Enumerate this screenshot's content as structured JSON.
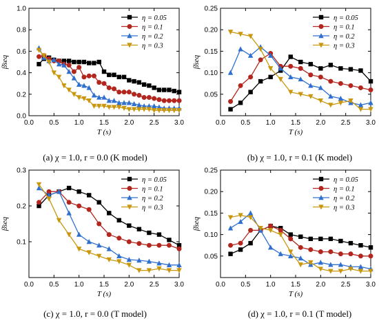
{
  "chart_data": [
    {
      "type": "line",
      "caption": "(a) χ = 1.0, r = 0.0 (K model)",
      "xlabel": "T (s)",
      "ylabel": "β̄seq",
      "xlim": [
        0,
        3.0
      ],
      "ylim": [
        0,
        1.0
      ],
      "xticks": [
        "0.0",
        "0.5",
        "1.0",
        "1.5",
        "2.0",
        "2.5",
        "3.0"
      ],
      "yticks": [
        "0.0",
        "0.2",
        "0.4",
        "0.6",
        "0.8",
        "1.0"
      ],
      "x": [
        0.2,
        0.3,
        0.4,
        0.5,
        0.6,
        0.7,
        0.8,
        0.9,
        1.0,
        1.1,
        1.2,
        1.3,
        1.4,
        1.5,
        1.6,
        1.7,
        1.8,
        1.9,
        2.0,
        2.1,
        2.2,
        2.3,
        2.4,
        2.5,
        2.6,
        2.7,
        2.8,
        2.9,
        3.0
      ],
      "legend_position": "top-right",
      "series": [
        {
          "name": "η = 0.05",
          "color": "#000000",
          "marker": "square",
          "values": [
            0.48,
            0.53,
            0.54,
            0.52,
            0.51,
            0.51,
            0.51,
            0.5,
            0.5,
            0.5,
            0.49,
            0.49,
            0.5,
            0.41,
            0.38,
            0.38,
            0.36,
            0.36,
            0.33,
            0.32,
            0.31,
            0.29,
            0.28,
            0.26,
            0.24,
            0.24,
            0.24,
            0.23,
            0.22
          ]
        },
        {
          "name": "η = 0.1",
          "color": "#b3261e",
          "marker": "circle",
          "values": [
            0.55,
            0.56,
            0.53,
            0.51,
            0.51,
            0.48,
            0.47,
            0.41,
            0.45,
            0.36,
            0.37,
            0.37,
            0.31,
            0.3,
            0.26,
            0.25,
            0.22,
            0.22,
            0.22,
            0.2,
            0.19,
            0.17,
            0.17,
            0.16,
            0.15,
            0.14,
            0.14,
            0.14,
            0.14
          ]
        },
        {
          "name": "η = 0.2",
          "color": "#2e6fcf",
          "marker": "triangle-up",
          "values": [
            0.63,
            0.54,
            0.51,
            0.52,
            0.48,
            0.47,
            0.41,
            0.35,
            0.29,
            0.28,
            0.26,
            0.19,
            0.17,
            0.17,
            0.14,
            0.14,
            0.12,
            0.12,
            0.12,
            0.11,
            0.1,
            0.09,
            0.09,
            0.09,
            0.08,
            0.07,
            0.07,
            0.07,
            0.07
          ]
        },
        {
          "name": "η = 0.3",
          "color": "#c9970e",
          "marker": "triangle-down",
          "values": [
            0.61,
            0.56,
            0.5,
            0.4,
            0.36,
            0.28,
            0.24,
            0.2,
            0.17,
            0.16,
            0.14,
            0.09,
            0.09,
            0.09,
            0.08,
            0.08,
            0.08,
            0.07,
            0.06,
            0.06,
            0.06,
            0.06,
            0.06,
            0.05,
            0.05,
            0.05,
            0.05,
            0.05,
            0.05
          ]
        }
      ]
    },
    {
      "type": "line",
      "caption": "(b) χ = 1.0, r = 0.1 (K model)",
      "xlabel": "T (s)",
      "ylabel": "β̄seq",
      "xlim": [
        0,
        3.0
      ],
      "ylim": [
        0,
        0.25
      ],
      "xticks": [
        "0.0",
        "0.5",
        "1.0",
        "1.5",
        "2.0",
        "2.5",
        "3.0"
      ],
      "yticks": [
        "0.05",
        "0.10",
        "0.15",
        "0.20",
        "0.25"
      ],
      "x": [
        0.2,
        0.4,
        0.6,
        0.8,
        1.0,
        1.2,
        1.4,
        1.6,
        1.8,
        2.0,
        2.2,
        2.4,
        2.6,
        2.8,
        3.0
      ],
      "legend_position": "top-right",
      "series": [
        {
          "name": "η = 0.05",
          "color": "#000000",
          "marker": "square",
          "values": [
            0.015,
            0.03,
            0.055,
            0.08,
            0.09,
            0.105,
            0.137,
            0.125,
            0.12,
            0.11,
            0.118,
            0.11,
            0.108,
            0.105,
            0.08
          ]
        },
        {
          "name": "η = 0.1",
          "color": "#b3261e",
          "marker": "circle",
          "values": [
            0.033,
            0.07,
            0.09,
            0.13,
            0.145,
            0.115,
            0.115,
            0.11,
            0.095,
            0.09,
            0.08,
            0.075,
            0.07,
            0.065,
            0.06
          ]
        },
        {
          "name": "η = 0.2",
          "color": "#2e6fcf",
          "marker": "triangle-up",
          "values": [
            0.1,
            0.155,
            0.14,
            0.16,
            0.14,
            0.11,
            0.09,
            0.085,
            0.07,
            0.065,
            0.045,
            0.04,
            0.03,
            0.025,
            0.03
          ]
        },
        {
          "name": "η = 0.3",
          "color": "#c9970e",
          "marker": "triangle-down",
          "values": [
            0.195,
            0.19,
            0.185,
            0.155,
            0.11,
            0.085,
            0.055,
            0.05,
            0.045,
            0.035,
            0.025,
            0.03,
            0.035,
            0.015,
            0.015
          ]
        }
      ]
    },
    {
      "type": "line",
      "caption": "(c) χ = 1.0, r = 0.0 (T model)",
      "xlabel": "T (s)",
      "ylabel": "β̄seq",
      "xlim": [
        0,
        3.0
      ],
      "ylim": [
        0,
        0.3
      ],
      "xticks": [
        "0.0",
        "0.5",
        "1.0",
        "1.5",
        "2.0",
        "2.5",
        "3.0"
      ],
      "yticks": [
        "0.1",
        "0.2",
        "0.3"
      ],
      "x": [
        0.2,
        0.4,
        0.6,
        0.8,
        1.0,
        1.2,
        1.4,
        1.6,
        1.8,
        2.0,
        2.2,
        2.4,
        2.6,
        2.8,
        3.0
      ],
      "legend_position": "top-right",
      "series": [
        {
          "name": "η = 0.05",
          "color": "#000000",
          "marker": "square",
          "values": [
            0.2,
            0.23,
            0.24,
            0.25,
            0.24,
            0.23,
            0.21,
            0.18,
            0.16,
            0.145,
            0.135,
            0.125,
            0.12,
            0.105,
            0.09
          ]
        },
        {
          "name": "η = 0.1",
          "color": "#b3261e",
          "marker": "circle",
          "values": [
            0.21,
            0.24,
            0.24,
            0.21,
            0.2,
            0.19,
            0.15,
            0.12,
            0.11,
            0.1,
            0.095,
            0.09,
            0.09,
            0.09,
            0.08
          ]
        },
        {
          "name": "η = 0.2",
          "color": "#2e6fcf",
          "marker": "triangle-up",
          "values": [
            0.25,
            0.23,
            0.24,
            0.18,
            0.12,
            0.1,
            0.09,
            0.08,
            0.06,
            0.05,
            0.048,
            0.045,
            0.04,
            0.035,
            0.035
          ]
        },
        {
          "name": "η = 0.3",
          "color": "#c9970e",
          "marker": "triangle-down",
          "values": [
            0.26,
            0.22,
            0.16,
            0.12,
            0.08,
            0.07,
            0.06,
            0.05,
            0.045,
            0.035,
            0.02,
            0.02,
            0.025,
            0.02,
            0.02
          ]
        }
      ]
    },
    {
      "type": "line",
      "caption": "(d) χ = 1.0, r = 0.1 (T model)",
      "xlabel": "T (s)",
      "ylabel": "β̄seq",
      "xlim": [
        0,
        3.0
      ],
      "ylim": [
        0,
        0.25
      ],
      "xticks": [
        "0.0",
        "0.5",
        "1.0",
        "1.5",
        "2.0",
        "2.5",
        "3.0"
      ],
      "yticks": [
        "0.05",
        "0.10",
        "0.15",
        "0.20",
        "0.25"
      ],
      "x": [
        0.2,
        0.4,
        0.6,
        0.8,
        1.0,
        1.2,
        1.4,
        1.6,
        1.8,
        2.0,
        2.2,
        2.4,
        2.6,
        2.8,
        3.0
      ],
      "legend_position": "top-right",
      "series": [
        {
          "name": "η = 0.05",
          "color": "#000000",
          "marker": "square",
          "values": [
            0.055,
            0.065,
            0.08,
            0.11,
            0.12,
            0.115,
            0.1,
            0.095,
            0.09,
            0.09,
            0.09,
            0.085,
            0.08,
            0.075,
            0.07
          ]
        },
        {
          "name": "η = 0.1",
          "color": "#b3261e",
          "marker": "circle",
          "values": [
            0.075,
            0.08,
            0.11,
            0.11,
            0.12,
            0.11,
            0.09,
            0.07,
            0.065,
            0.06,
            0.06,
            0.055,
            0.055,
            0.05,
            0.05
          ]
        },
        {
          "name": "η = 0.2",
          "color": "#2e6fcf",
          "marker": "triangle-up",
          "values": [
            0.115,
            0.13,
            0.15,
            0.11,
            0.07,
            0.055,
            0.05,
            0.045,
            0.03,
            0.035,
            0.03,
            0.03,
            0.025,
            0.025,
            0.02
          ]
        },
        {
          "name": "η = 0.3",
          "color": "#c9970e",
          "marker": "triangle-down",
          "values": [
            0.14,
            0.145,
            0.14,
            0.115,
            0.11,
            0.1,
            0.06,
            0.03,
            0.035,
            0.02,
            0.015,
            0.015,
            0.02,
            0.015,
            0.015
          ]
        }
      ]
    }
  ]
}
